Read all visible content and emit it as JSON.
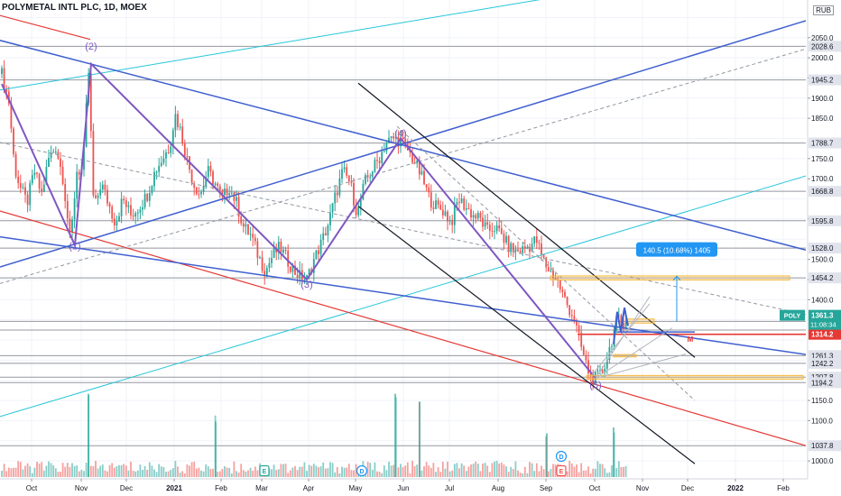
{
  "title": "POLYMETAL INTL PLC, 1D, MOEX",
  "currency": "RUB",
  "colors": {
    "up": "#26a69a",
    "down": "#ef5350",
    "purple": "#7e57c2",
    "blue": "#3f5fcf",
    "red": "#e53935",
    "cyan": "#26c6da",
    "black": "#131722",
    "gray_line": "#9598a1",
    "orange": "#f6b73c",
    "ticker_bg": "#26a69a",
    "measure_bg": "#2196f3",
    "price_red": "#e53935"
  },
  "chart_data": {
    "type": "candlestick",
    "symbol": "POLY",
    "ylim": [
      960,
      2130
    ],
    "x_ticks": [
      {
        "label": "Oct",
        "t": 35
      },
      {
        "label": "Nov",
        "t": 90
      },
      {
        "label": "Dec",
        "t": 140
      },
      {
        "label": "2021",
        "t": 193
      },
      {
        "label": "Feb",
        "t": 245
      },
      {
        "label": "Mar",
        "t": 290
      },
      {
        "label": "Apr",
        "t": 342
      },
      {
        "label": "May",
        "t": 394
      },
      {
        "label": "Jun",
        "t": 447
      },
      {
        "label": "Jul",
        "t": 498
      },
      {
        "label": "Aug",
        "t": 552
      },
      {
        "label": "Sep",
        "t": 605
      },
      {
        "label": "Oct",
        "t": 659
      },
      {
        "label": "Nov",
        "t": 712
      },
      {
        "label": "Dec",
        "t": 762
      },
      {
        "label": "2022",
        "t": 815
      },
      {
        "label": "Feb",
        "t": 868
      }
    ],
    "y_ticks": [
      1000,
      1050,
      1100,
      1150,
      1200,
      1250,
      1300,
      1350,
      1400,
      1450,
      1500,
      1550,
      1600,
      1650,
      1700,
      1750,
      1800,
      1850,
      1900,
      1950,
      2000,
      2050,
      2100
    ],
    "anchors": [
      [
        2,
        1960
      ],
      [
        10,
        1890
      ],
      [
        16,
        1730
      ],
      [
        22,
        1680
      ],
      [
        30,
        1640
      ],
      [
        38,
        1720
      ],
      [
        46,
        1660
      ],
      [
        54,
        1750
      ],
      [
        62,
        1780
      ],
      [
        70,
        1700
      ],
      [
        78,
        1540
      ],
      [
        85,
        1720
      ],
      [
        92,
        1720
      ],
      [
        98,
        1975
      ],
      [
        104,
        1620
      ],
      [
        112,
        1690
      ],
      [
        120,
        1640
      ],
      [
        128,
        1590
      ],
      [
        136,
        1650
      ],
      [
        145,
        1610
      ],
      [
        154,
        1630
      ],
      [
        163,
        1660
      ],
      [
        172,
        1720
      ],
      [
        180,
        1750
      ],
      [
        188,
        1780
      ],
      [
        194,
        1860
      ],
      [
        200,
        1820
      ],
      [
        206,
        1760
      ],
      [
        214,
        1690
      ],
      [
        222,
        1660
      ],
      [
        230,
        1720
      ],
      [
        238,
        1690
      ],
      [
        246,
        1650
      ],
      [
        254,
        1680
      ],
      [
        262,
        1640
      ],
      [
        270,
        1580
      ],
      [
        278,
        1560
      ],
      [
        286,
        1510
      ],
      [
        294,
        1470
      ],
      [
        302,
        1510
      ],
      [
        310,
        1530
      ],
      [
        318,
        1500
      ],
      [
        326,
        1470
      ],
      [
        334,
        1455
      ],
      [
        340,
        1450
      ],
      [
        348,
        1500
      ],
      [
        356,
        1540
      ],
      [
        364,
        1590
      ],
      [
        372,
        1660
      ],
      [
        380,
        1720
      ],
      [
        388,
        1690
      ],
      [
        396,
        1610
      ],
      [
        404,
        1690
      ],
      [
        412,
        1720
      ],
      [
        420,
        1750
      ],
      [
        428,
        1790
      ],
      [
        436,
        1800
      ],
      [
        444,
        1795
      ],
      [
        452,
        1770
      ],
      [
        460,
        1740
      ],
      [
        468,
        1700
      ],
      [
        476,
        1650
      ],
      [
        484,
        1630
      ],
      [
        492,
        1620
      ],
      [
        500,
        1590
      ],
      [
        508,
        1650
      ],
      [
        516,
        1630
      ],
      [
        524,
        1610
      ],
      [
        532,
        1600
      ],
      [
        540,
        1570
      ],
      [
        548,
        1580
      ],
      [
        556,
        1560
      ],
      [
        564,
        1530
      ],
      [
        572,
        1520
      ],
      [
        580,
        1525
      ],
      [
        588,
        1535
      ],
      [
        594,
        1550
      ],
      [
        600,
        1510
      ],
      [
        606,
        1480
      ],
      [
        612,
        1465
      ],
      [
        618,
        1445
      ],
      [
        624,
        1410
      ],
      [
        630,
        1380
      ],
      [
        636,
        1355
      ],
      [
        642,
        1300
      ],
      [
        648,
        1250
      ],
      [
        654,
        1210
      ],
      [
        660,
        1205
      ],
      [
        666,
        1215
      ],
      [
        672,
        1250
      ],
      [
        678,
        1300
      ],
      [
        684,
        1350
      ],
      [
        690,
        1340
      ],
      [
        696,
        1361
      ]
    ],
    "volume_spikes": [
      [
        98,
        42
      ],
      [
        239,
        28
      ],
      [
        438,
        42
      ],
      [
        465,
        38
      ],
      [
        606,
        22
      ],
      [
        680,
        25
      ]
    ],
    "h_levels": [
      {
        "value": 2028.6,
        "label": "2028.6",
        "style": "gray"
      },
      {
        "value": 1945.2,
        "label": "1945.2",
        "style": "gray"
      },
      {
        "value": 1788.7,
        "label": "1788.7",
        "style": "gray"
      },
      {
        "value": 1668.8,
        "label": "1668.8",
        "style": "gray"
      },
      {
        "value": 1595.8,
        "label": "1595.8",
        "style": "gray"
      },
      {
        "value": 1528.0,
        "label": "1528.0",
        "style": "gray"
      },
      {
        "value": 1454.2,
        "label": "1454.2",
        "style": "gray"
      },
      {
        "value": 1346.3,
        "label": "1346.3",
        "style": "gray"
      },
      {
        "value": 1324.6,
        "label": "1324.6",
        "style": "gray"
      },
      {
        "value": 1261.3,
        "label": "1261.3",
        "style": "gray"
      },
      {
        "value": 1242.2,
        "label": "1242.2",
        "style": "gray"
      },
      {
        "value": 1207.8,
        "label": "1207.8",
        "style": "gray"
      },
      {
        "value": 1194.2,
        "label": "1194.2",
        "style": "gray"
      },
      {
        "value": 1037.8,
        "label": "1037.8",
        "style": "gray"
      },
      {
        "value": 1314.2,
        "label": "1314.2",
        "style": "red"
      }
    ],
    "last_price": {
      "symbol": "POLY",
      "value": 1361.3,
      "label": "1361.3",
      "countdown": "11:08:34"
    },
    "measure_label": "140.5 (10.68%) 1405",
    "wave_labels": [
      {
        "text": "(1)",
        "t": 83,
        "v": 1525
      },
      {
        "text": "(2)",
        "t": 101,
        "v": 2020
      },
      {
        "text": "(3)",
        "t": 340,
        "v": 1430
      },
      {
        "text": "(4)",
        "t": 444,
        "v": 1805
      },
      {
        "text": "(5)",
        "t": 660,
        "v": 1180
      }
    ],
    "m_label": {
      "text": "M",
      "t": 765,
      "v": 1314
    },
    "event_markers": [
      {
        "text": "E",
        "t": 293,
        "kind": "earnings"
      },
      {
        "text": "D",
        "t": 401,
        "kind": "dividend"
      },
      {
        "text": "D",
        "t": 622,
        "kind": "dividend"
      },
      {
        "text": "E",
        "t": 622,
        "kind": "earnings"
      }
    ]
  }
}
